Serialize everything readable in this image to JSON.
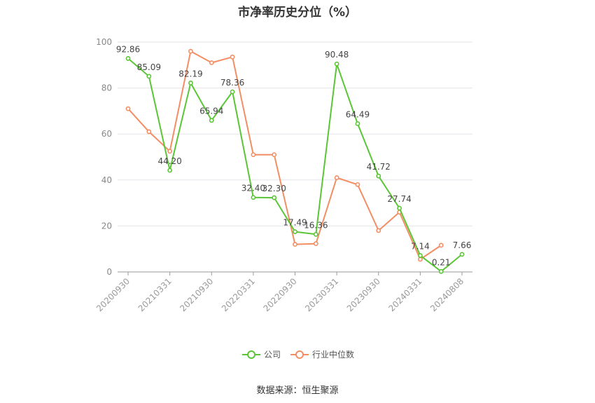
{
  "chart_data": {
    "type": "line",
    "title": "市净率历史分位（%）",
    "x": [
      "20200930",
      "20201231",
      "20210331",
      "20210630",
      "20210930",
      "20211231",
      "20220331",
      "20220630",
      "20220930",
      "20221231",
      "20230331",
      "20230630",
      "20230930",
      "20231231",
      "20240331",
      "20240630",
      "20240808"
    ],
    "x_tick_labels": [
      "20200930",
      "20210331",
      "20210930",
      "20220331",
      "20220930",
      "20230331",
      "20230930",
      "20240331",
      "20240808"
    ],
    "ylim": [
      0,
      100
    ],
    "y_ticks": [
      0,
      20,
      40,
      60,
      80,
      100
    ],
    "series": [
      {
        "name": "公司",
        "color": "#5ac636",
        "values": [
          92.86,
          85.09,
          44.2,
          82.19,
          65.94,
          78.36,
          32.4,
          32.3,
          17.49,
          16.36,
          90.48,
          64.49,
          41.72,
          27.74,
          7.14,
          0.21,
          7.66
        ],
        "labels": [
          "92.86",
          "85.09",
          "44.20",
          "82.19",
          "65.94",
          "78.36",
          "32.40",
          "32.30",
          "17.49",
          "16.36",
          "90.48",
          "64.49",
          "41.72",
          "27.74",
          "7.14",
          "0.21",
          "7.66"
        ]
      },
      {
        "name": "行业中位数",
        "color": "#f38e64",
        "values": [
          71,
          61,
          52.5,
          96,
          91,
          93.5,
          51,
          51,
          12,
          12.3,
          41,
          38,
          18,
          26,
          5.5,
          11.6,
          null
        ]
      }
    ],
    "grid": true,
    "legend_position": "bottom"
  },
  "source_text": "数据来源：恒生聚源"
}
